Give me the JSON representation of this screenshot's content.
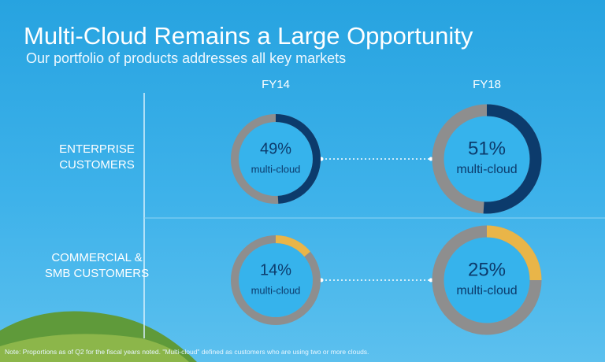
{
  "chart_data": {
    "type": "donut",
    "title": "Multi-Cloud Remains a Large Opportunity",
    "subtitle": "Our portfolio of products addresses all key markets",
    "categories": [
      "FY14",
      "FY18"
    ],
    "series": [
      {
        "name": "ENTERPRISE CUSTOMERS",
        "color": "#0c3b6c",
        "values": [
          49,
          51
        ],
        "value_labels": [
          "49%",
          "51%"
        ]
      },
      {
        "name": "COMMERCIAL & SMB CUSTOMERS",
        "color": "#e9b548",
        "values": [
          14,
          25
        ],
        "value_labels": [
          "14%",
          "25%"
        ]
      }
    ],
    "center_label": "multi-cloud",
    "rest_color": "#8e8e8e",
    "note": "Note: Proportions as of Q2 for the fiscal years noted. \"Multi-cloud\" defined as customers who are using two or more clouds."
  }
}
